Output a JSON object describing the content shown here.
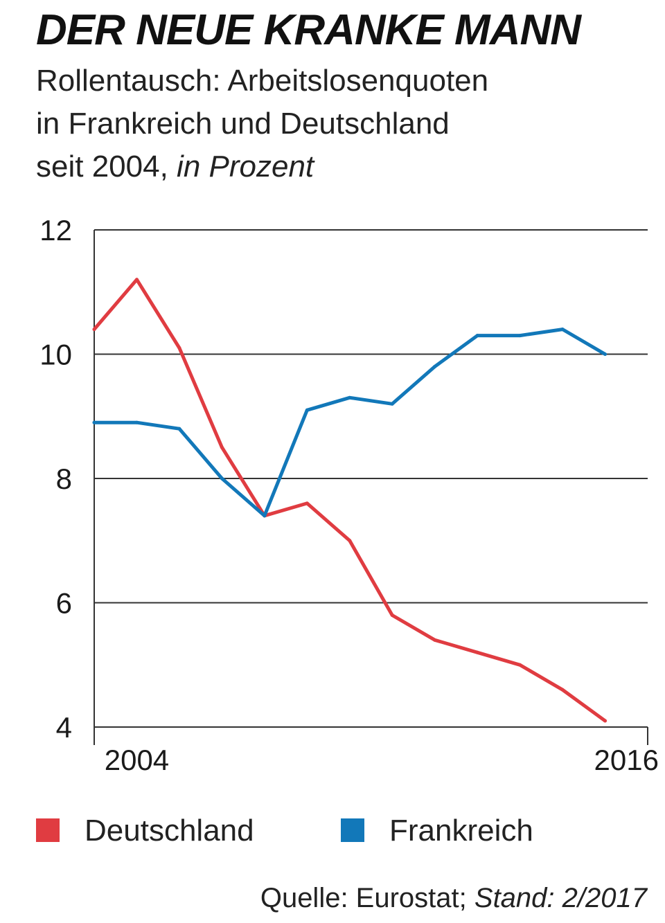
{
  "header": {
    "title": "DER NEUE KRANKE MANN",
    "subtitle_line1": "Rollentausch: Arbeitslosenquoten",
    "subtitle_line2": "in Frankreich und Deutschland",
    "subtitle_line3": "seit 2004,",
    "subtitle_unit": "in Prozent"
  },
  "chart_data": {
    "type": "line",
    "title": "DER NEUE KRANKE MANN",
    "subtitle": "Rollentausch: Arbeitslosenquoten in Frankreich und Deutschland seit 2004, in Prozent",
    "x": [
      2003.5,
      2004.5,
      2005.5,
      2006.5,
      2007.5,
      2008.5,
      2009.5,
      2010.5,
      2011.5,
      2012.5,
      2013.5,
      2014.5,
      2015.5,
      2016.5
    ],
    "x_tick_labels": [
      {
        "label": "2004",
        "x": 2004.5
      },
      {
        "label": "2016",
        "x": 2016
      }
    ],
    "y_ticks": [
      "4",
      "6",
      "8",
      "10",
      "12"
    ],
    "ylim": [
      4,
      12
    ],
    "xlim": [
      2003.5,
      2016.5
    ],
    "xlabel": "",
    "ylabel": "",
    "grid": true,
    "series": [
      {
        "name": "Deutschland",
        "color": "#e03c41",
        "values": [
          10.4,
          11.2,
          10.1,
          8.5,
          7.4,
          7.6,
          7.0,
          5.8,
          5.4,
          5.2,
          5.0,
          4.6,
          4.1,
          null
        ]
      },
      {
        "name": "Frankreich",
        "color": "#1278b9",
        "values": [
          8.9,
          8.9,
          8.8,
          8.0,
          7.4,
          9.1,
          9.3,
          9.2,
          9.8,
          10.3,
          10.3,
          10.4,
          10.0,
          null
        ]
      }
    ]
  },
  "legend": {
    "items": [
      {
        "label": "Deutschland",
        "color": "#e03c41"
      },
      {
        "label": "Frankreich",
        "color": "#1278b9"
      }
    ]
  },
  "footer": {
    "source": "Quelle: Eurostat;",
    "stand": "Stand: 2/2017"
  }
}
